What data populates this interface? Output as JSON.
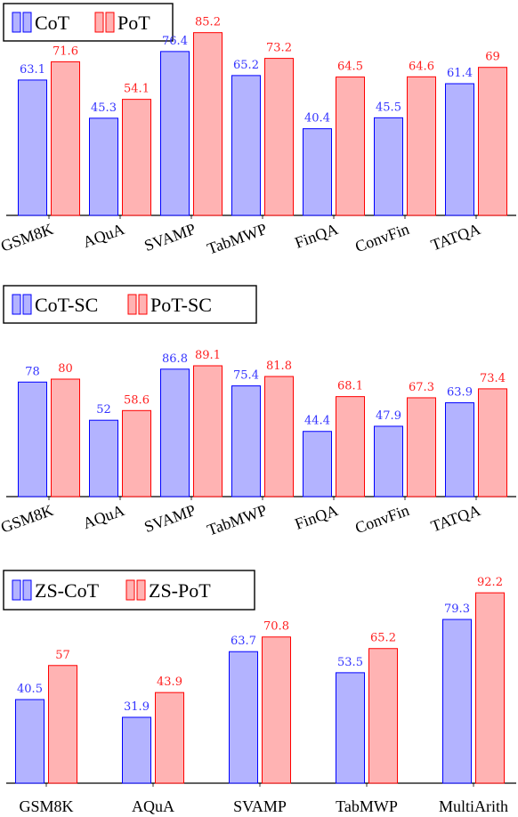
{
  "colors": {
    "series_a_fill": "#b3b3ff",
    "series_a_stroke": "#0000ff",
    "series_b_fill": "#ffb3b3",
    "series_b_stroke": "#ff0000"
  },
  "chart_data": [
    {
      "type": "bar",
      "legend_position": "top-left",
      "categories": [
        "GSM8K",
        "AQuA",
        "SVAMP",
        "TabMWP",
        "FinQA",
        "ConvFin",
        "TATQA"
      ],
      "series": [
        {
          "name": "CoT",
          "values": [
            63.1,
            45.3,
            76.4,
            65.2,
            40.4,
            45.5,
            61.4
          ]
        },
        {
          "name": "PoT",
          "values": [
            71.6,
            54.1,
            85.2,
            73.2,
            64.5,
            64.6,
            69
          ]
        }
      ],
      "grid": false
    },
    {
      "type": "bar",
      "legend_position": "top-left",
      "categories": [
        "GSM8K",
        "AQuA",
        "SVAMP",
        "TabMWP",
        "FinQA",
        "ConvFin",
        "TATQA"
      ],
      "series": [
        {
          "name": "CoT-SC",
          "values": [
            78,
            52,
            86.8,
            75.4,
            44.4,
            47.9,
            63.9
          ]
        },
        {
          "name": "PoT-SC",
          "values": [
            80,
            58.6,
            89.1,
            81.8,
            68.1,
            67.3,
            73.4
          ]
        }
      ],
      "grid": false
    },
    {
      "type": "bar",
      "legend_position": "top-left",
      "categories": [
        "GSM8K",
        "AQuA",
        "SVAMP",
        "TabMWP",
        "MultiArith"
      ],
      "series": [
        {
          "name": "ZS-CoT",
          "values": [
            40.5,
            31.9,
            63.7,
            53.5,
            79.3
          ]
        },
        {
          "name": "ZS-PoT",
          "values": [
            57,
            43.9,
            70.8,
            65.2,
            92.2
          ]
        }
      ],
      "grid": false
    }
  ]
}
